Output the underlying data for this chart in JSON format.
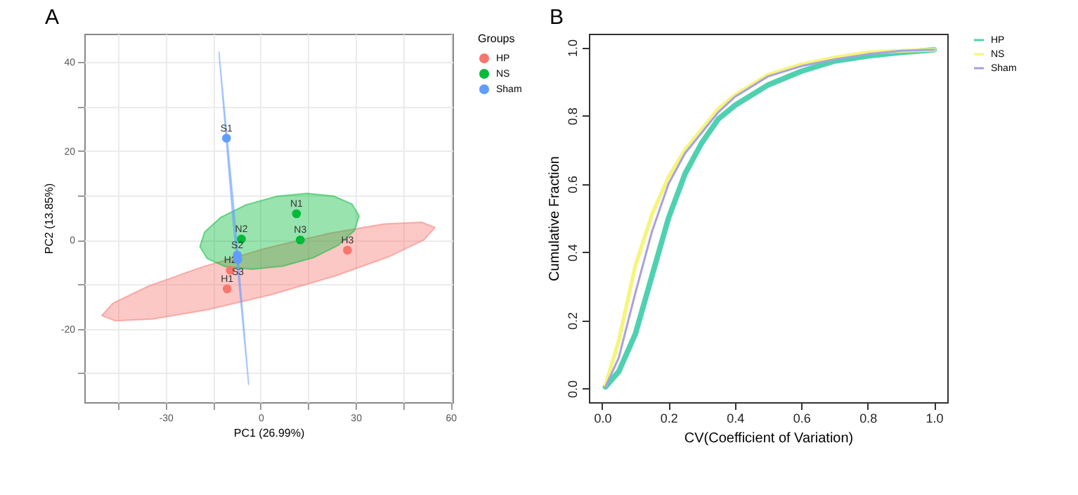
{
  "chart_data": [
    {
      "type": "scatter",
      "title": "A",
      "xlabel": "PC1 (26.99%)",
      "ylabel": "PC2 (13.85%)",
      "legend_title": "Groups",
      "legend": "right",
      "grid": true,
      "marker": "circle",
      "xlim": [
        -55.7,
        60.6
      ],
      "ylim": [
        -36.5,
        46.4
      ],
      "xticks": [
        {
          "value": -45,
          "label": null
        },
        -30,
        {
          "value": -15,
          "label": null
        },
        0,
        {
          "value": 15,
          "label": null
        },
        30,
        {
          "value": 45,
          "label": null
        },
        60
      ],
      "yticks": [
        {
          "value": -30,
          "label": null
        },
        -20,
        {
          "value": -10,
          "label": null
        },
        0,
        {
          "value": 10,
          "label": null
        },
        20,
        {
          "value": 30,
          "label": null
        },
        40
      ],
      "series": [
        {
          "type": "area",
          "marker": "none",
          "color": "#f8766d",
          "x": [
            55.1,
            50.8,
            39.0,
            21.7,
            1.5,
            -18.6,
            -35.5,
            -46.6,
            -50.2,
            -45.9,
            -34.1,
            -16.8,
            3.4,
            23.5,
            40.4,
            51.5,
            55.1
          ],
          "values": [
            2.8,
            4.0,
            3.6,
            1.5,
            -1.9,
            -6.1,
            -10.4,
            -14.2,
            -17.0,
            -18.2,
            -17.8,
            -15.7,
            -12.3,
            -8.1,
            -3.8,
            0.0,
            2.8
          ]
        },
        {
          "type": "area",
          "marker": "none",
          "color": "#00ba38",
          "x": [
            31.1,
            28.8,
            23.0,
            14.6,
            4.9,
            -4.7,
            -12.6,
            -17.7,
            -19.2,
            -16.9,
            -11.1,
            -2.7,
            7.0,
            16.6,
            24.5,
            29.6,
            31.1
          ],
          "values": [
            5.4,
            8.1,
            9.9,
            10.5,
            9.8,
            7.9,
            5.1,
            1.8,
            -1.5,
            -4.2,
            -6.0,
            -6.6,
            -5.9,
            -4.0,
            -1.2,
            2.1,
            5.4
          ]
        },
        {
          "type": "area",
          "marker": "none",
          "color": "#619cff",
          "x": [
            -13.2,
            -8.2,
            -3.8,
            -8.8,
            -13.2
          ],
          "values": [
            42.4,
            5.0,
            -32.5,
            4.9,
            42.4
          ]
        },
        {
          "name": "HP",
          "color": "#f8766d",
          "x": [
            -10.6,
            -9.6,
            27.4
          ],
          "values": [
            -11.0,
            -6.8,
            -2.3
          ],
          "value_labels": [
            "H1",
            "H2",
            "H3"
          ]
        },
        {
          "name": "NS",
          "color": "#00ba38",
          "x": [
            11.3,
            -6.1,
            12.5
          ],
          "values": [
            5.9,
            0.2,
            0.0
          ],
          "value_labels": [
            "N1",
            "N2",
            "N3"
          ]
        },
        {
          "name": "Sham",
          "color": "#619cff",
          "x": [
            -10.8,
            -7.4,
            -7.2
          ],
          "values": [
            22.9,
            -3.4,
            -4.4
          ],
          "value_labels": [
            "S1",
            "S2",
            "S3"
          ]
        }
      ]
    },
    {
      "type": "line",
      "title": "B",
      "xlabel": "CV(Coefficient of Variation)",
      "ylabel": "Cumulative Fraction",
      "legend": "right",
      "grid": false,
      "xlim": [
        -0.04,
        1.04
      ],
      "ylim": [
        -0.04,
        1.04
      ],
      "xticks": [
        {
          "value": 0,
          "label": "0.0"
        },
        0.2,
        0.4,
        0.6,
        0.8,
        {
          "value": 1,
          "label": "1.0"
        }
      ],
      "yticks": [
        {
          "value": 0,
          "label": "0.0"
        },
        0.2,
        0.4,
        0.6,
        0.8,
        {
          "value": 1,
          "label": "1.0"
        }
      ],
      "x": [
        0.01,
        0.05,
        0.1,
        0.15,
        0.2,
        0.25,
        0.3,
        0.35,
        0.4,
        0.5,
        0.6,
        0.7,
        0.8,
        0.9,
        1.0
      ],
      "series": [
        {
          "name": "HP",
          "color": "#4fd1b0",
          "values": [
            0.005,
            0.05,
            0.16,
            0.33,
            0.5,
            0.63,
            0.72,
            0.79,
            0.83,
            0.89,
            0.93,
            0.96,
            0.975,
            0.985,
            0.993
          ]
        },
        {
          "name": "NS",
          "color": "#f5f57a",
          "values": [
            0.01,
            0.14,
            0.36,
            0.51,
            0.62,
            0.7,
            0.76,
            0.82,
            0.86,
            0.92,
            0.95,
            0.97,
            0.985,
            0.99,
            0.993
          ]
        },
        {
          "name": "Sham",
          "color": "#a9a0e0",
          "values": [
            0.005,
            0.09,
            0.28,
            0.46,
            0.6,
            0.69,
            0.75,
            0.81,
            0.855,
            0.915,
            0.945,
            0.965,
            0.98,
            0.99,
            0.993
          ]
        }
      ]
    }
  ]
}
